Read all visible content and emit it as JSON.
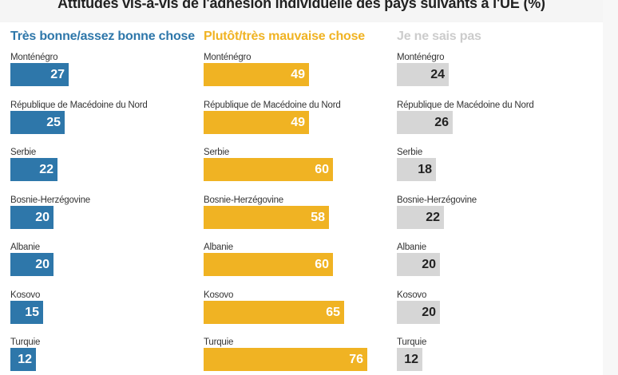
{
  "chart_data": {
    "type": "bar",
    "title": "Attitudes vis-à-vis de l'adhésion individuelle des pays suivants à l'UE (%)",
    "categories": [
      "Monténégro",
      "République de Macédoine du Nord",
      "Serbie",
      "Bosnie-Herzégovine",
      "Albanie",
      "Kosovo",
      "Turquie"
    ],
    "series": [
      {
        "name": "Très bonne/assez bonne chose",
        "color": "#2e77aa",
        "label_color": "#ffffff",
        "values": [
          27,
          25,
          22,
          20,
          20,
          15,
          12
        ]
      },
      {
        "name": "Plutôt/très mauvaise chose",
        "color": "#f0b323",
        "label_color": "#ffffff",
        "values": [
          49,
          49,
          60,
          58,
          60,
          65,
          76
        ]
      },
      {
        "name": "Je ne sais pas",
        "color": "#d6d6d6",
        "label_color": "#222222",
        "values": [
          24,
          26,
          18,
          22,
          20,
          20,
          12
        ]
      }
    ],
    "header_colors": [
      "#2e77aa",
      "#f0b323",
      "#cccccc"
    ],
    "orientation": "horizontal",
    "layout": "small multiples, three panels side by side",
    "xlim": [
      0,
      100
    ],
    "grid": false,
    "legend": "column headers at top"
  }
}
